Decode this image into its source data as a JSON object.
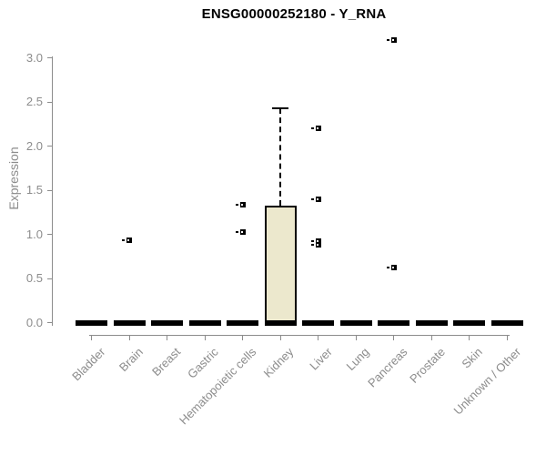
{
  "title": "ENSG00000252180 - Y_RNA",
  "chart_data": {
    "type": "boxplot",
    "title": "ENSG00000252180 - Y_RNA",
    "xlabel": "",
    "ylabel": "Expression",
    "ylim": [
      0.0,
      3.0
    ],
    "yticks": [
      0.0,
      0.5,
      1.0,
      1.5,
      2.0,
      2.5,
      3.0
    ],
    "grid": false,
    "legend": "none",
    "categories": [
      "Bladder",
      "Brain",
      "Breast",
      "Gastric",
      "Hematopoietic cells",
      "Kidney",
      "Liver",
      "Lung",
      "Pancreas",
      "Prostate",
      "Skin",
      "Unknown / Other"
    ],
    "boxes": [
      {
        "category": "Bladder",
        "whisker_low": 0,
        "q1": 0,
        "median": 0,
        "q3": 0,
        "whisker_high": 0,
        "outliers": []
      },
      {
        "category": "Brain",
        "whisker_low": 0,
        "q1": 0,
        "median": 0,
        "q3": 0,
        "whisker_high": 0,
        "outliers": [
          0.93
        ]
      },
      {
        "category": "Breast",
        "whisker_low": 0,
        "q1": 0,
        "median": 0,
        "q3": 0,
        "whisker_high": 0,
        "outliers": []
      },
      {
        "category": "Gastric",
        "whisker_low": 0,
        "q1": 0,
        "median": 0,
        "q3": 0,
        "whisker_high": 0,
        "outliers": []
      },
      {
        "category": "Hematopoietic cells",
        "whisker_low": 0,
        "q1": 0,
        "median": 0,
        "q3": 0,
        "whisker_high": 0,
        "outliers": [
          1.03,
          1.34
        ]
      },
      {
        "category": "Kidney",
        "whisker_low": 0,
        "q1": 0,
        "median": 0,
        "q3": 1.32,
        "whisker_high": 2.43,
        "outliers": []
      },
      {
        "category": "Liver",
        "whisker_low": 0,
        "q1": 0,
        "median": 0,
        "q3": 0,
        "whisker_high": 0,
        "outliers": [
          0.88,
          0.92,
          1.4,
          2.2
        ]
      },
      {
        "category": "Lung",
        "whisker_low": 0,
        "q1": 0,
        "median": 0,
        "q3": 0,
        "whisker_high": 0,
        "outliers": []
      },
      {
        "category": "Pancreas",
        "whisker_low": 0,
        "q1": 0,
        "median": 0,
        "q3": 0,
        "whisker_high": 0,
        "outliers": [
          0.62,
          3.2
        ]
      },
      {
        "category": "Prostate",
        "whisker_low": 0,
        "q1": 0,
        "median": 0,
        "q3": 0,
        "whisker_high": 0,
        "outliers": []
      },
      {
        "category": "Skin",
        "whisker_low": 0,
        "q1": 0,
        "median": 0,
        "q3": 0,
        "whisker_high": 0,
        "outliers": []
      },
      {
        "category": "Unknown / Other",
        "whisker_low": 0,
        "q1": 0,
        "median": 0,
        "q3": 0,
        "whisker_high": 0,
        "outliers": []
      }
    ],
    "colors": {
      "box_fill": "#ece8cd",
      "box_border": "#000000",
      "median": "#000000",
      "outlier": "#000000",
      "axis": "#8c8c8c",
      "axis_text": "#8c8c8c",
      "title_text": "#000000",
      "background": "#ffffff"
    }
  }
}
